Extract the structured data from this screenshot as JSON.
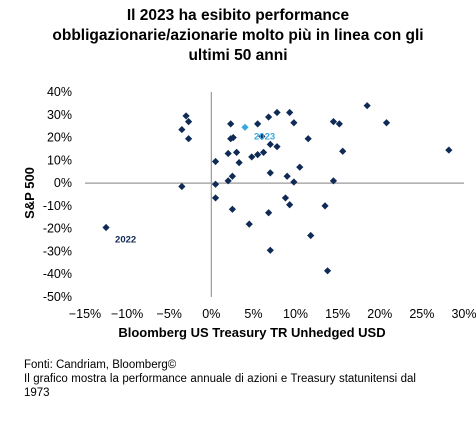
{
  "chart_data": {
    "type": "scatter",
    "title_lines": [
      "Il 2023 ha esibito performance",
      "obbligazionarie/azionarie molto più in linea con gli",
      "ultimi 50 anni"
    ],
    "xlabel": "Bloomberg US Treasury TR Unhedged USD",
    "ylabel": "S&P 500",
    "xlim": [
      -0.15,
      0.3
    ],
    "ylim": [
      -0.5,
      0.4
    ],
    "x_ticks": [
      -0.15,
      -0.1,
      -0.05,
      0,
      0.05,
      0.1,
      0.15,
      0.2,
      0.25,
      0.3
    ],
    "x_tick_labels": [
      "−15%",
      "−10%",
      "−5%",
      "0%",
      "5%",
      "10%",
      "15%",
      "20%",
      "25%",
      "30%"
    ],
    "y_ticks": [
      0.4,
      0.3,
      0.2,
      0.1,
      0,
      -0.1,
      -0.2,
      -0.3,
      -0.4,
      -0.5
    ],
    "y_tick_labels": [
      "40%",
      "30%",
      "20%",
      "10%",
      "0%",
      "-10%",
      "-20%",
      "-30%",
      "-40%",
      "-50%"
    ],
    "grid": false,
    "colors": {
      "points": "#0f2a55",
      "highlight": "#3aa8e0",
      "axis": "#9a9a9a"
    },
    "points": [
      {
        "x": -0.125,
        "y": -0.195,
        "label": "2022"
      },
      {
        "x": 0.04,
        "y": 0.245,
        "label": "2023",
        "highlight": true
      },
      {
        "x": -0.035,
        "y": 0.235
      },
      {
        "x": -0.03,
        "y": 0.295
      },
      {
        "x": -0.027,
        "y": 0.27
      },
      {
        "x": -0.027,
        "y": 0.195
      },
      {
        "x": -0.035,
        "y": -0.015
      },
      {
        "x": 0.005,
        "y": 0.095
      },
      {
        "x": 0.005,
        "y": -0.005
      },
      {
        "x": 0.005,
        "y": -0.065
      },
      {
        "x": 0.02,
        "y": 0.13
      },
      {
        "x": 0.02,
        "y": 0.01
      },
      {
        "x": 0.023,
        "y": 0.26
      },
      {
        "x": 0.023,
        "y": 0.195
      },
      {
        "x": 0.026,
        "y": 0.2
      },
      {
        "x": 0.025,
        "y": 0.03
      },
      {
        "x": 0.025,
        "y": -0.115
      },
      {
        "x": 0.03,
        "y": 0.135
      },
      {
        "x": 0.033,
        "y": 0.09
      },
      {
        "x": 0.045,
        "y": -0.18
      },
      {
        "x": 0.048,
        "y": 0.115
      },
      {
        "x": 0.055,
        "y": 0.26
      },
      {
        "x": 0.055,
        "y": 0.125
      },
      {
        "x": 0.06,
        "y": 0.205
      },
      {
        "x": 0.062,
        "y": 0.135
      },
      {
        "x": 0.068,
        "y": 0.29
      },
      {
        "x": 0.07,
        "y": 0.17
      },
      {
        "x": 0.07,
        "y": 0.045
      },
      {
        "x": 0.068,
        "y": -0.13
      },
      {
        "x": 0.07,
        "y": -0.295
      },
      {
        "x": 0.078,
        "y": 0.31
      },
      {
        "x": 0.078,
        "y": 0.16
      },
      {
        "x": 0.088,
        "y": -0.065
      },
      {
        "x": 0.09,
        "y": 0.03
      },
      {
        "x": 0.093,
        "y": 0.31
      },
      {
        "x": 0.093,
        "y": -0.095
      },
      {
        "x": 0.098,
        "y": 0.265
      },
      {
        "x": 0.098,
        "y": 0.005
      },
      {
        "x": 0.105,
        "y": 0.07
      },
      {
        "x": 0.115,
        "y": 0.195
      },
      {
        "x": 0.118,
        "y": -0.23
      },
      {
        "x": 0.135,
        "y": -0.1
      },
      {
        "x": 0.138,
        "y": -0.385
      },
      {
        "x": 0.145,
        "y": 0.27
      },
      {
        "x": 0.145,
        "y": 0.01
      },
      {
        "x": 0.152,
        "y": 0.26
      },
      {
        "x": 0.156,
        "y": 0.14
      },
      {
        "x": 0.185,
        "y": 0.34
      },
      {
        "x": 0.208,
        "y": 0.265
      },
      {
        "x": 0.282,
        "y": 0.145
      }
    ]
  },
  "footer": {
    "source": "Fonti: Candriam, Bloomberg©",
    "description": "Il grafico mostra la performance annuale di azioni e Treasury statunitensi dal 1973"
  }
}
